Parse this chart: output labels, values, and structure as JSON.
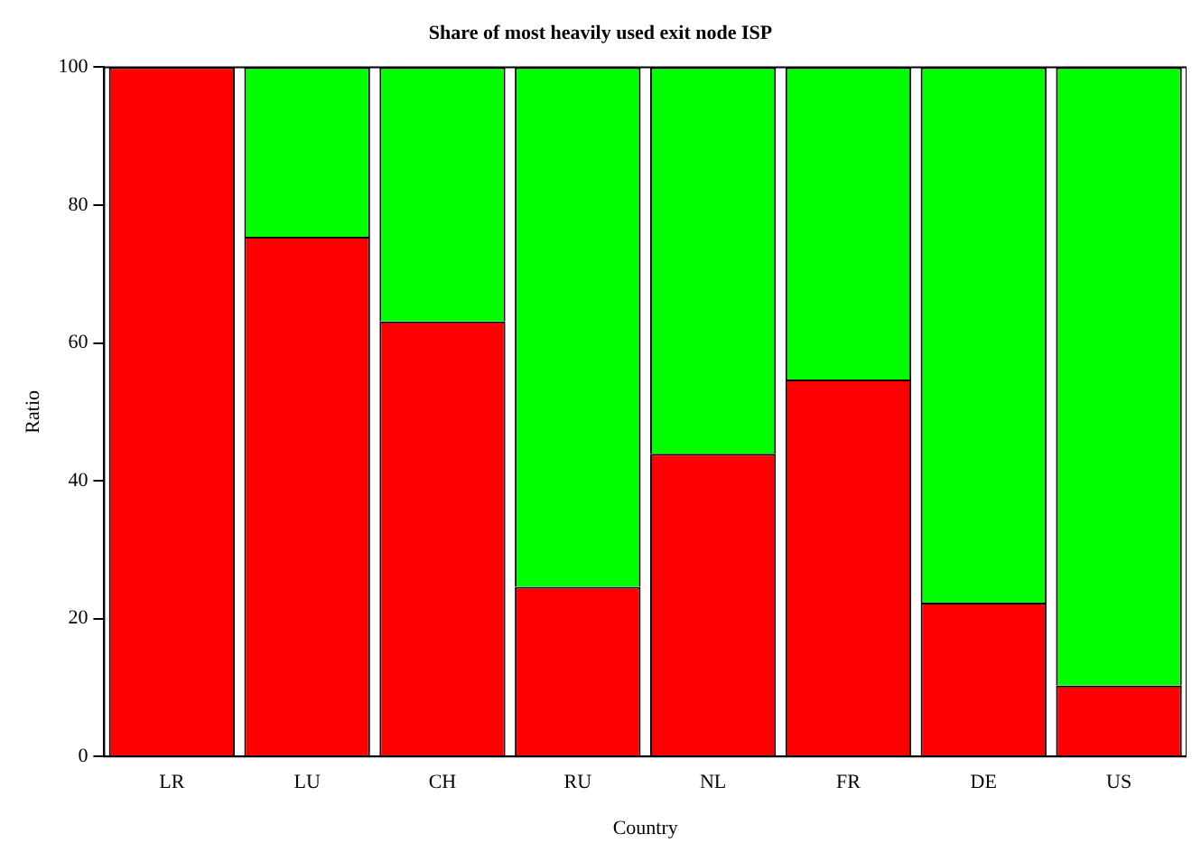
{
  "chart_data": {
    "type": "bar",
    "title": "Share of most heavily used exit node ISP",
    "xlabel": "Country",
    "ylabel": "Ratio",
    "categories": [
      "LR",
      "LU",
      "CH",
      "RU",
      "NL",
      "FR",
      "DE",
      "US"
    ],
    "stacked": true,
    "series": [
      {
        "color": "#ff0000",
        "values": [
          100,
          75.4,
          63.1,
          24.6,
          43.9,
          54.7,
          22.3,
          10.3
        ]
      },
      {
        "color": "#00ff00",
        "values": [
          0,
          24.6,
          36.9,
          75.4,
          56.1,
          45.3,
          77.7,
          89.7
        ]
      }
    ],
    "ylim": [
      0,
      100
    ],
    "yticks": [
      0,
      20,
      40,
      60,
      80,
      100
    ],
    "grid": false,
    "legend": false
  }
}
